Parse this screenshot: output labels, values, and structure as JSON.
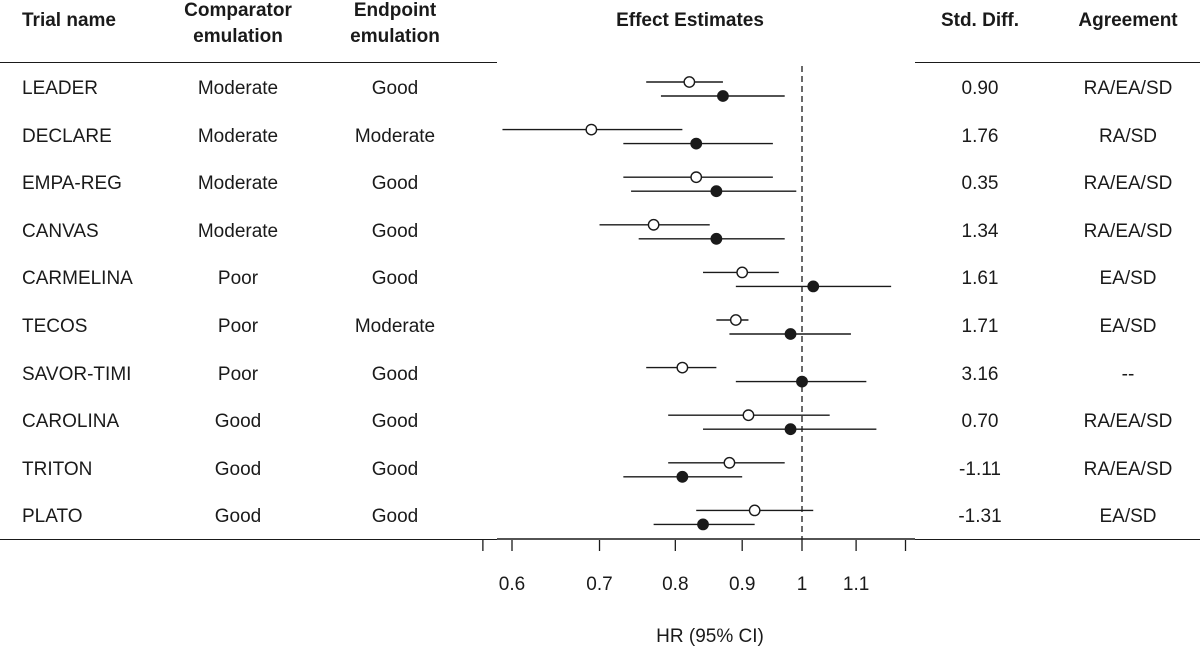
{
  "headers": {
    "trial_name": "Trial name",
    "comparator_line1": "Comparator",
    "comparator_line2": "emulation",
    "endpoint_line1": "Endpoint",
    "endpoint_line2": "emulation",
    "effect": "Effect Estimates",
    "std_diff": "Std. Diff.",
    "agreement": "Agreement"
  },
  "rows": [
    {
      "trial": "LEADER",
      "comparator": "Moderate",
      "endpoint": "Good",
      "std_diff": "0.90",
      "agreement": "RA/EA/SD"
    },
    {
      "trial": "DECLARE",
      "comparator": "Moderate",
      "endpoint": "Moderate",
      "std_diff": "1.76",
      "agreement": "RA/SD"
    },
    {
      "trial": "EMPA-REG",
      "comparator": "Moderate",
      "endpoint": "Good",
      "std_diff": "0.35",
      "agreement": "RA/EA/SD"
    },
    {
      "trial": "CANVAS",
      "comparator": "Moderate",
      "endpoint": "Good",
      "std_diff": "1.34",
      "agreement": "RA/EA/SD"
    },
    {
      "trial": "CARMELINA",
      "comparator": "Poor",
      "endpoint": "Good",
      "std_diff": "1.61",
      "agreement": "EA/SD"
    },
    {
      "trial": "TECOS",
      "comparator": "Poor",
      "endpoint": "Moderate",
      "std_diff": "1.71",
      "agreement": "EA/SD"
    },
    {
      "trial": "SAVOR-TIMI",
      "comparator": "Poor",
      "endpoint": "Good",
      "std_diff": "3.16",
      "agreement": "--"
    },
    {
      "trial": "CAROLINA",
      "comparator": "Good",
      "endpoint": "Good",
      "std_diff": "0.70",
      "agreement": "RA/EA/SD"
    },
    {
      "trial": "TRITON",
      "comparator": "Good",
      "endpoint": "Good",
      "std_diff": "-1.11",
      "agreement": "RA/EA/SD"
    },
    {
      "trial": "PLATO",
      "comparator": "Good",
      "endpoint": "Good",
      "std_diff": "-1.31",
      "agreement": "EA/SD"
    }
  ],
  "chart_data": {
    "type": "forest",
    "xlabel": "HR (95% CI)",
    "xscale": "log",
    "xlim": [
      0.57,
      1.2
    ],
    "ticks": [
      0.6,
      0.7,
      0.8,
      0.9,
      1,
      1.1
    ],
    "tick_labels": [
      "0.6",
      "0.7",
      "0.8",
      "0.9",
      "1",
      "1.1"
    ],
    "reference_line": 1,
    "categories": [
      "LEADER",
      "DECLARE",
      "EMPA-REG",
      "CANVAS",
      "CARMELINA",
      "TECOS",
      "SAVOR-TIMI",
      "CAROLINA",
      "TRITON",
      "PLATO"
    ],
    "series": [
      {
        "marker": "open-circle",
        "values": [
          {
            "est": 0.82,
            "lo": 0.76,
            "hi": 0.87
          },
          {
            "est": 0.69,
            "lo": 0.59,
            "hi": 0.81
          },
          {
            "est": 0.83,
            "lo": 0.73,
            "hi": 0.95
          },
          {
            "est": 0.77,
            "lo": 0.7,
            "hi": 0.85
          },
          {
            "est": 0.9,
            "lo": 0.84,
            "hi": 0.96
          },
          {
            "est": 0.89,
            "lo": 0.86,
            "hi": 0.91
          },
          {
            "est": 0.81,
            "lo": 0.76,
            "hi": 0.86
          },
          {
            "est": 0.91,
            "lo": 0.79,
            "hi": 1.05
          },
          {
            "est": 0.88,
            "lo": 0.79,
            "hi": 0.97
          },
          {
            "est": 0.92,
            "lo": 0.83,
            "hi": 1.02
          }
        ]
      },
      {
        "marker": "filled-circle",
        "values": [
          {
            "est": 0.87,
            "lo": 0.78,
            "hi": 0.97
          },
          {
            "est": 0.83,
            "lo": 0.73,
            "hi": 0.95
          },
          {
            "est": 0.86,
            "lo": 0.74,
            "hi": 0.99
          },
          {
            "est": 0.86,
            "lo": 0.75,
            "hi": 0.97
          },
          {
            "est": 1.02,
            "lo": 0.89,
            "hi": 1.17
          },
          {
            "est": 0.98,
            "lo": 0.88,
            "hi": 1.09
          },
          {
            "est": 1.0,
            "lo": 0.89,
            "hi": 1.12
          },
          {
            "est": 0.98,
            "lo": 0.84,
            "hi": 1.14
          },
          {
            "est": 0.81,
            "lo": 0.73,
            "hi": 0.9
          },
          {
            "est": 0.84,
            "lo": 0.77,
            "hi": 0.92
          }
        ]
      }
    ],
    "colors": {
      "ink": "#1a1a1a",
      "open_fill": "#ffffff"
    }
  }
}
